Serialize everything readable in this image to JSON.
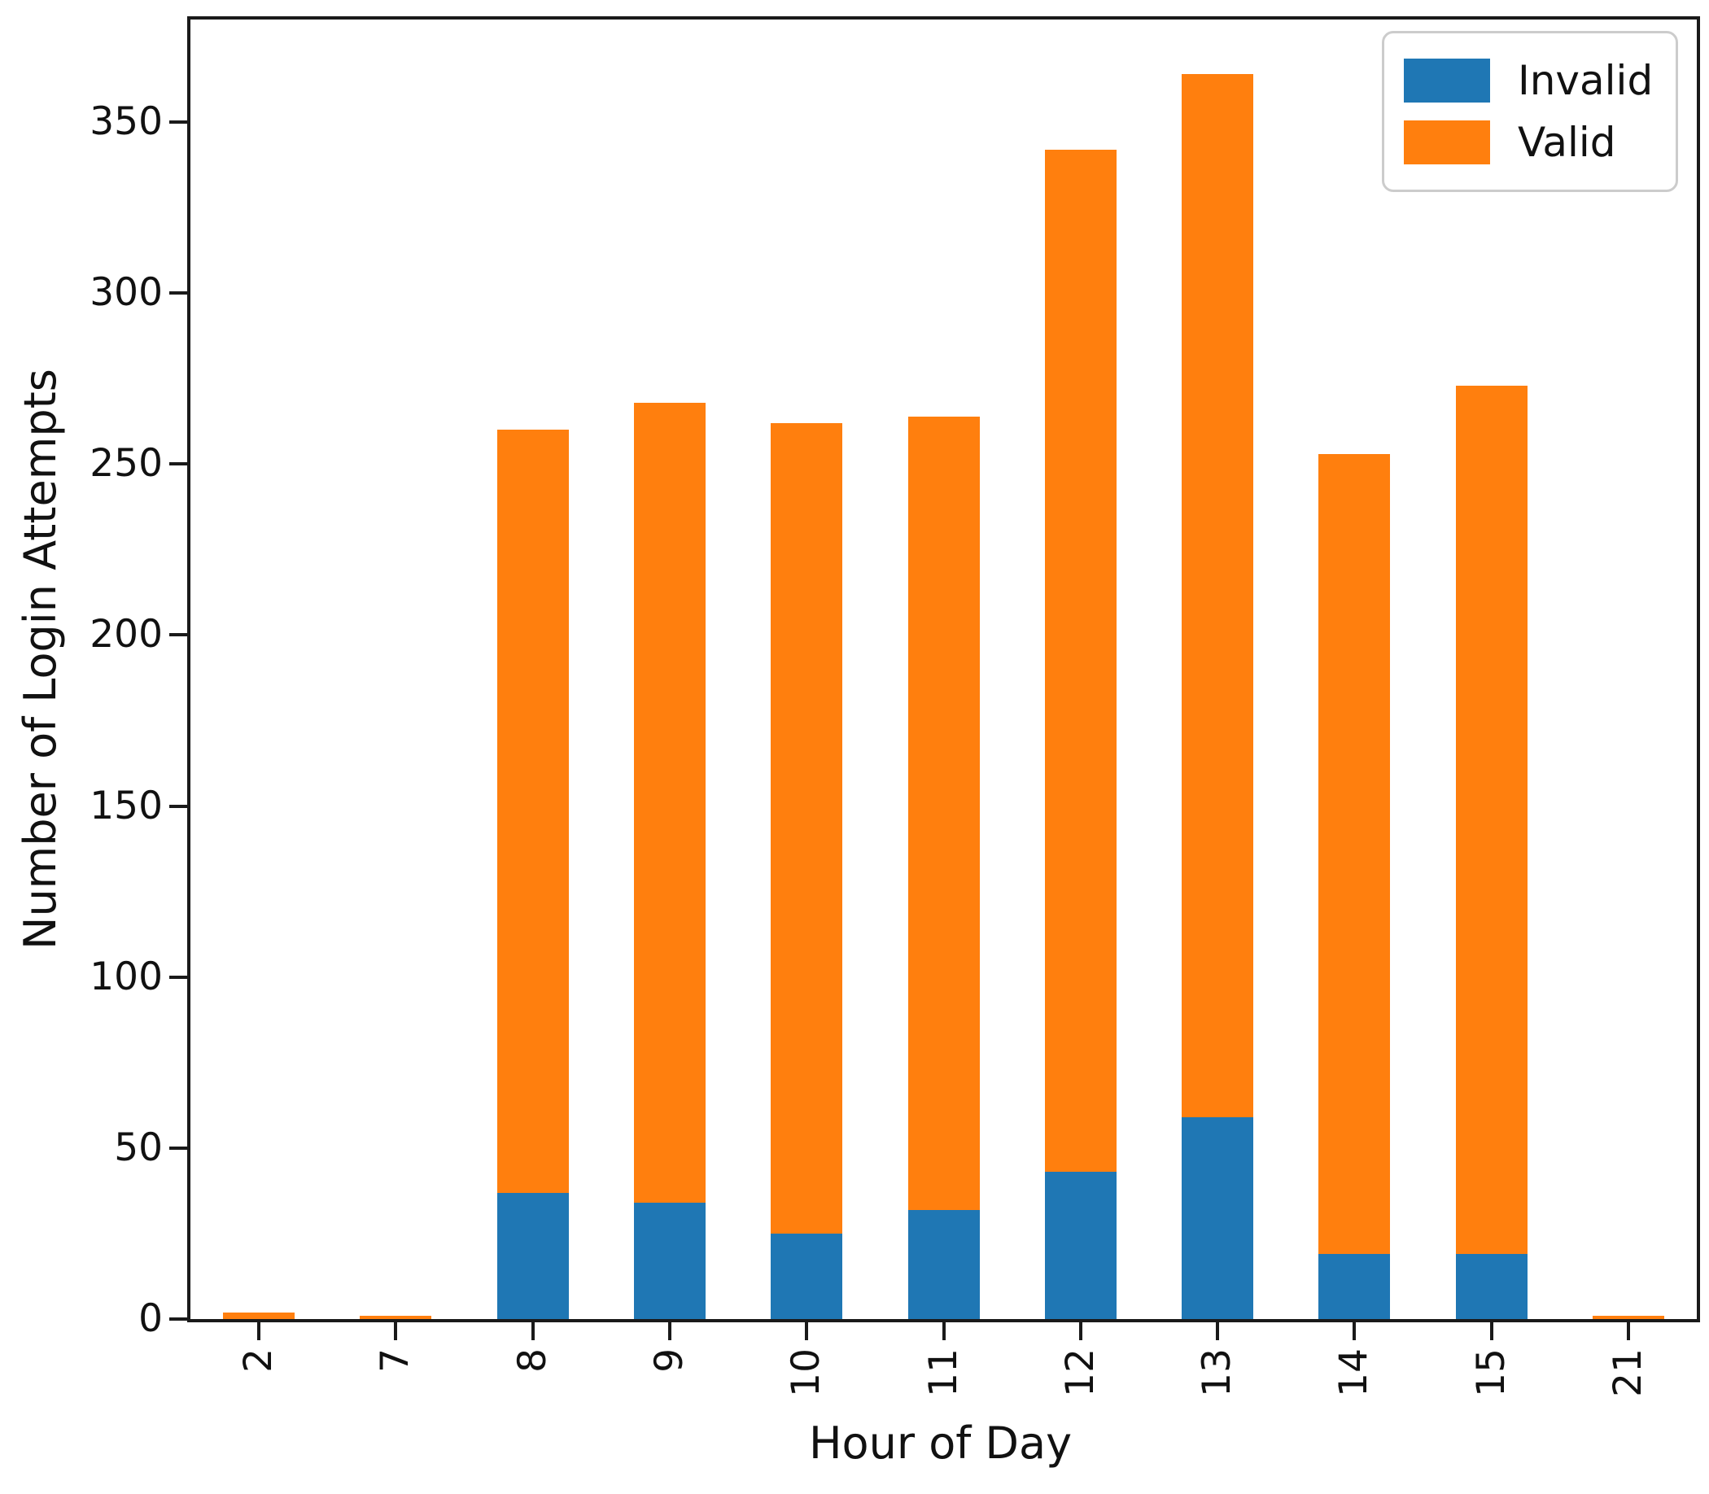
{
  "chart_data": {
    "type": "bar",
    "stacked": true,
    "title": "",
    "xlabel": "Hour of Day",
    "ylabel": "Number of Login Attempts",
    "categories": [
      "2",
      "7",
      "8",
      "9",
      "10",
      "11",
      "12",
      "13",
      "14",
      "15",
      "21"
    ],
    "series": [
      {
        "name": "Invalid",
        "color": "#1f77b4",
        "values": [
          0,
          0,
          37,
          34,
          25,
          32,
          43,
          59,
          19,
          19,
          0
        ]
      },
      {
        "name": "Valid",
        "color": "#ff7f0e",
        "values": [
          2,
          1,
          223,
          234,
          237,
          232,
          299,
          305,
          234,
          254,
          1
        ]
      }
    ],
    "totals": [
      2,
      1,
      260,
      268,
      262,
      264,
      342,
      364,
      253,
      273,
      1
    ],
    "ylim": [
      0,
      380
    ],
    "yticks": [
      0,
      50,
      100,
      150,
      200,
      250,
      300,
      350
    ],
    "xtick_rotation": 90,
    "grid": false,
    "legend": {
      "position": "upper right",
      "entries": [
        "Invalid",
        "Valid"
      ]
    },
    "colors": {
      "invalid": "#1f77b4",
      "valid": "#ff7f0e",
      "spine": "#1a1a1a",
      "background": "#ffffff"
    }
  }
}
